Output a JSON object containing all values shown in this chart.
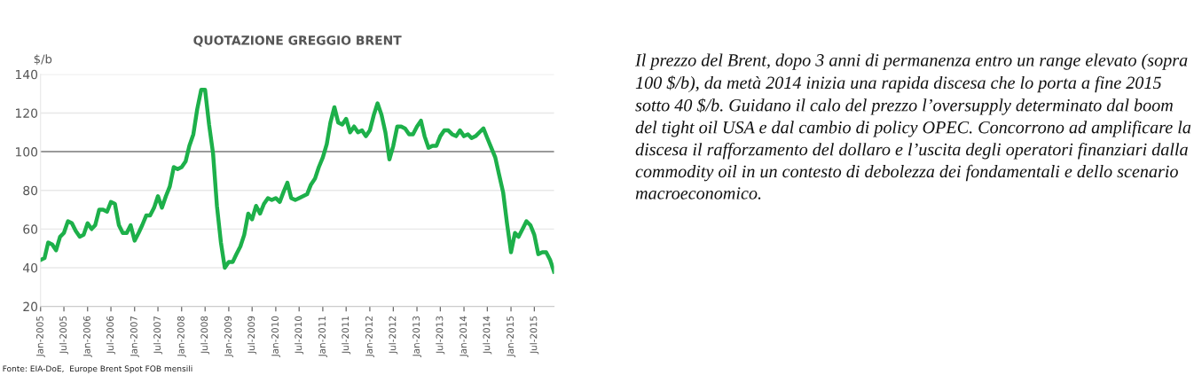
{
  "chart_data": {
    "type": "line",
    "title": "QUOTAZIONE GREGGIO BRENT",
    "ylabel": "$/b",
    "x": [
      "2005-01",
      "2005-02",
      "2005-03",
      "2005-04",
      "2005-05",
      "2005-06",
      "2005-07",
      "2005-08",
      "2005-09",
      "2005-10",
      "2005-11",
      "2005-12",
      "2006-01",
      "2006-02",
      "2006-03",
      "2006-04",
      "2006-05",
      "2006-06",
      "2006-07",
      "2006-08",
      "2006-09",
      "2006-10",
      "2006-11",
      "2006-12",
      "2007-01",
      "2007-02",
      "2007-03",
      "2007-04",
      "2007-05",
      "2007-06",
      "2007-07",
      "2007-08",
      "2007-09",
      "2007-10",
      "2007-11",
      "2007-12",
      "2008-01",
      "2008-02",
      "2008-03",
      "2008-04",
      "2008-05",
      "2008-06",
      "2008-07",
      "2008-08",
      "2008-09",
      "2008-10",
      "2008-11",
      "2008-12",
      "2009-01",
      "2009-02",
      "2009-03",
      "2009-04",
      "2009-05",
      "2009-06",
      "2009-07",
      "2009-08",
      "2009-09",
      "2009-10",
      "2009-11",
      "2009-12",
      "2010-01",
      "2010-02",
      "2010-03",
      "2010-04",
      "2010-05",
      "2010-06",
      "2010-07",
      "2010-08",
      "2010-09",
      "2010-10",
      "2010-11",
      "2010-12",
      "2011-01",
      "2011-02",
      "2011-03",
      "2011-04",
      "2011-05",
      "2011-06",
      "2011-07",
      "2011-08",
      "2011-09",
      "2011-10",
      "2011-11",
      "2011-12",
      "2012-01",
      "2012-02",
      "2012-03",
      "2012-04",
      "2012-05",
      "2012-06",
      "2012-07",
      "2012-08",
      "2012-09",
      "2012-10",
      "2012-11",
      "2012-12",
      "2013-01",
      "2013-02",
      "2013-03",
      "2013-04",
      "2013-05",
      "2013-06",
      "2013-07",
      "2013-08",
      "2013-09",
      "2013-10",
      "2013-11",
      "2013-12",
      "2014-01",
      "2014-02",
      "2014-03",
      "2014-04",
      "2014-05",
      "2014-06",
      "2014-07",
      "2014-08",
      "2014-09",
      "2014-10",
      "2014-11",
      "2014-12",
      "2015-01",
      "2015-02",
      "2015-03",
      "2015-04",
      "2015-05",
      "2015-06",
      "2015-07",
      "2015-08",
      "2015-09",
      "2015-10",
      "2015-11",
      "2015-12"
    ],
    "series": [
      {
        "color": "#1db04a",
        "values": [
          44,
          45,
          53,
          52,
          49,
          56,
          58,
          64,
          63,
          59,
          56,
          57,
          63,
          60,
          62,
          70,
          70,
          69,
          74,
          73,
          62,
          58,
          58,
          62,
          54,
          58,
          62,
          67,
          67,
          71,
          77,
          71,
          77,
          82,
          92,
          91,
          92,
          95,
          103,
          109,
          122,
          132,
          132,
          114,
          99,
          72,
          53,
          40,
          43,
          43,
          47,
          51,
          57,
          68,
          65,
          72,
          68,
          73,
          76,
          75,
          76,
          74,
          79,
          84,
          76,
          75,
          76,
          77,
          78,
          83,
          86,
          92,
          97,
          104,
          115,
          123,
          115,
          114,
          117,
          110,
          113,
          110,
          111,
          108,
          111,
          119,
          125,
          119,
          110,
          96,
          103,
          113,
          113,
          112,
          109,
          109,
          113,
          116,
          108,
          102,
          103,
          103,
          108,
          111,
          111,
          109,
          108,
          111,
          108,
          109,
          107,
          108,
          110,
          112,
          107,
          102,
          97,
          88,
          79,
          63,
          48,
          58,
          56,
          60,
          64,
          62,
          57,
          47,
          48,
          48,
          44,
          38
        ]
      }
    ],
    "xlim": [
      "2005-01",
      "2015-12"
    ],
    "xticks": [
      {
        "value": "2005-01",
        "label": "Jan-2005"
      },
      {
        "value": "2005-07",
        "label": "Jul-2005"
      },
      {
        "value": "2006-01",
        "label": "Jan-2006"
      },
      {
        "value": "2006-07",
        "label": "Jul-2006"
      },
      {
        "value": "2007-01",
        "label": "Jan-2007"
      },
      {
        "value": "2007-07",
        "label": "Jul-2007"
      },
      {
        "value": "2008-01",
        "label": "Jan-2008"
      },
      {
        "value": "2008-07",
        "label": "Jul-2008"
      },
      {
        "value": "2009-01",
        "label": "Jan-2009"
      },
      {
        "value": "2009-07",
        "label": "Jul-2009"
      },
      {
        "value": "2010-01",
        "label": "Jan-2010"
      },
      {
        "value": "2010-07",
        "label": "Jul-2010"
      },
      {
        "value": "2011-01",
        "label": "Jan-2011"
      },
      {
        "value": "2011-07",
        "label": "Jul-2011"
      },
      {
        "value": "2012-01",
        "label": "Jan-2012"
      },
      {
        "value": "2012-07",
        "label": "Jul-2012"
      },
      {
        "value": "2013-01",
        "label": "Jan-2013"
      },
      {
        "value": "2013-07",
        "label": "Jul-2013"
      },
      {
        "value": "2014-01",
        "label": "Jan-2014"
      },
      {
        "value": "2014-07",
        "label": "Jul-2014"
      },
      {
        "value": "2015-01",
        "label": "Jan-2015"
      },
      {
        "value": "2015-07",
        "label": "Jul-2015"
      }
    ],
    "ylim": [
      20,
      140
    ],
    "yticks": [
      20,
      40,
      60,
      80,
      100,
      120,
      140
    ],
    "grid": "y",
    "marker": "none",
    "line_style": "solid",
    "ref_lines": [
      {
        "axis": "y",
        "value": 100,
        "color": "#9a9a9a"
      }
    ],
    "annotations": [
      "Fonte: EIA-DoE,  Europe Brent Spot FOB mensili",
      "Il prezzo del Brent, dopo 3 anni di permanenza entro un range elevato (sopra 100 $/b), da metà 2014 inizia una rapida discesa che lo porta a fine 2015 sotto 40 $/b. Guidano il calo del prezzo l’oversupply determinato dal boom del tight oil USA e dal cambio di policy OPEC. Concorrono ad amplificare la discesa il rafforzamento del dollaro e l’uscita degli operatori finanziari dalla commodity oil in un contesto di debolezza dei fondamentali e dello scenario macroeconomico."
    ]
  }
}
